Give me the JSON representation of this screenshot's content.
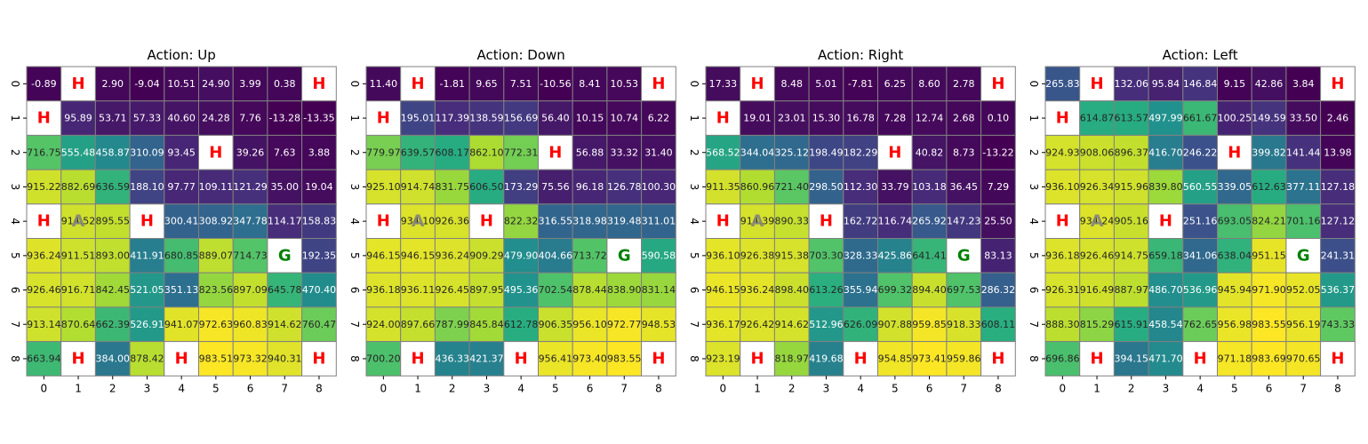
{
  "colors": {
    "hole_text": "#ff0000",
    "goal_text": "#008000",
    "agent_text": "#808080",
    "special_bg": "#ffffff",
    "grid_line": "#808080",
    "colormap": "viridis"
  },
  "chart_data": [
    {
      "type": "heatmap",
      "title": "Action: Up",
      "x_ticks": [
        "0",
        "1",
        "2",
        "3",
        "4",
        "5",
        "6",
        "7",
        "8"
      ],
      "y_ticks": [
        "0",
        "1",
        "2",
        "3",
        "4",
        "5",
        "6",
        "7",
        "8"
      ],
      "labels": [
        [
          "-0.89",
          "H",
          "2.90",
          "-9.04",
          "10.51",
          "24.90",
          "3.99",
          "0.38",
          "H"
        ],
        [
          "H",
          "95.89",
          "53.71",
          "57.33",
          "40.60",
          "24.28",
          "7.76",
          "-13.28",
          "-13.35"
        ],
        [
          "716.75",
          "555.48",
          "458.87",
          "310.09",
          "93.45",
          "H",
          "39.26",
          "7.63",
          "3.88"
        ],
        [
          "915.22",
          "882.69",
          "636.59",
          "188.10",
          "97.77",
          "109.11",
          "121.29",
          "35.00",
          "19.04"
        ],
        [
          "H",
          "914.52",
          "895.55",
          "H",
          "300.41",
          "308.92",
          "347.78",
          "114.17",
          "158.83"
        ],
        [
          "936.24",
          "911.51",
          "893.00",
          "411.91",
          "680.85",
          "889.07",
          "714.73",
          "G",
          "192.35"
        ],
        [
          "926.46",
          "916.71",
          "842.45",
          "521.05",
          "351.13",
          "823.56",
          "897.09",
          "645.78",
          "470.40"
        ],
        [
          "913.14",
          "870.64",
          "662.39",
          "526.91",
          "941.07",
          "972.63",
          "960.83",
          "914.62",
          "760.47"
        ],
        [
          "663.94",
          "H",
          "384.00",
          "878.42",
          "H",
          "983.51",
          "973.32",
          "940.31",
          "H"
        ]
      ]
    },
    {
      "type": "heatmap",
      "title": "Action: Down",
      "x_ticks": [
        "0",
        "1",
        "2",
        "3",
        "4",
        "5",
        "6",
        "7",
        "8"
      ],
      "y_ticks": [
        "0",
        "1",
        "2",
        "3",
        "4",
        "5",
        "6",
        "7",
        "8"
      ],
      "labels": [
        [
          "11.40",
          "H",
          "-1.81",
          "9.65",
          "7.51",
          "-10.56",
          "8.41",
          "10.53",
          "H"
        ],
        [
          "H",
          "195.01",
          "117.39",
          "138.59",
          "156.69",
          "56.40",
          "10.15",
          "10.74",
          "6.22"
        ],
        [
          "779.97",
          "639.57",
          "608.17",
          "862.10",
          "772.31",
          "H",
          "56.88",
          "33.32",
          "31.40"
        ],
        [
          "925.10",
          "914.74",
          "831.75",
          "606.50",
          "173.29",
          "75.56",
          "96.18",
          "126.78",
          "100.30"
        ],
        [
          "H",
          "934.10",
          "926.36",
          "H",
          "822.32",
          "316.55",
          "318.98",
          "319.48",
          "311.01"
        ],
        [
          "946.15",
          "946.15",
          "936.24",
          "909.29",
          "479.90",
          "404.66",
          "713.72",
          "G",
          "590.58"
        ],
        [
          "936.18",
          "936.11",
          "926.45",
          "897.95",
          "495.36",
          "702.54",
          "878.44",
          "838.90",
          "831.14"
        ],
        [
          "924.00",
          "897.66",
          "787.99",
          "845.84",
          "612.78",
          "906.35",
          "956.10",
          "972.77",
          "948.53"
        ],
        [
          "700.20",
          "H",
          "436.33",
          "421.37",
          "H",
          "956.41",
          "973.40",
          "983.55",
          "H"
        ]
      ]
    },
    {
      "type": "heatmap",
      "title": "Action: Right",
      "x_ticks": [
        "0",
        "1",
        "2",
        "3",
        "4",
        "5",
        "6",
        "7",
        "8"
      ],
      "y_ticks": [
        "0",
        "1",
        "2",
        "3",
        "4",
        "5",
        "6",
        "7",
        "8"
      ],
      "labels": [
        [
          "17.33",
          "H",
          "8.48",
          "5.01",
          "-7.81",
          "6.25",
          "8.60",
          "2.78",
          "H"
        ],
        [
          "H",
          "19.01",
          "23.01",
          "15.30",
          "16.78",
          "7.28",
          "12.74",
          "2.68",
          "0.10"
        ],
        [
          "568.52",
          "344.04",
          "325.12",
          "198.49",
          "182.29",
          "H",
          "40.82",
          "8.73",
          "-13.22"
        ],
        [
          "911.35",
          "860.96",
          "721.40",
          "298.50",
          "112.30",
          "33.79",
          "103.18",
          "36.45",
          "7.29"
        ],
        [
          "H",
          "914.39",
          "890.33",
          "H",
          "162.72",
          "116.74",
          "265.92",
          "147.23",
          "25.50"
        ],
        [
          "936.10",
          "926.38",
          "915.38",
          "703.30",
          "328.33",
          "425.86",
          "641.41",
          "G",
          "83.13"
        ],
        [
          "946.15",
          "936.24",
          "898.40",
          "613.26",
          "355.94",
          "699.32",
          "894.40",
          "697.53",
          "286.32"
        ],
        [
          "936.17",
          "926.42",
          "914.62",
          "512.96",
          "626.09",
          "907.88",
          "959.85",
          "918.33",
          "608.11"
        ],
        [
          "923.19",
          "H",
          "818.97",
          "419.68",
          "H",
          "954.85",
          "973.41",
          "959.86",
          "H"
        ]
      ]
    },
    {
      "type": "heatmap",
      "title": "Action: Left",
      "x_ticks": [
        "0",
        "1",
        "2",
        "3",
        "4",
        "5",
        "6",
        "7",
        "8"
      ],
      "y_ticks": [
        "0",
        "1",
        "2",
        "3",
        "4",
        "5",
        "6",
        "7",
        "8"
      ],
      "labels": [
        [
          "265.83",
          "H",
          "132.06",
          "95.84",
          "146.84",
          "9.15",
          "42.86",
          "3.84",
          "H"
        ],
        [
          "H",
          "614.87",
          "613.57",
          "497.99",
          "661.67",
          "100.25",
          "149.59",
          "33.50",
          "2.46"
        ],
        [
          "924.93",
          "908.06",
          "896.37",
          "416.70",
          "246.22",
          "H",
          "399.82",
          "141.44",
          "13.98"
        ],
        [
          "936.10",
          "926.34",
          "915.96",
          "839.80",
          "560.55",
          "339.05",
          "612.63",
          "377.11",
          "127.18"
        ],
        [
          "H",
          "934.24",
          "905.16",
          "H",
          "251.16",
          "693.05",
          "824.21",
          "701.16",
          "127.12"
        ],
        [
          "936.18",
          "926.46",
          "914.75",
          "659.18",
          "341.06",
          "638.04",
          "951.15",
          "G",
          "241.31"
        ],
        [
          "926.31",
          "916.49",
          "887.97",
          "486.70",
          "536.96",
          "945.94",
          "971.90",
          "952.05",
          "536.37"
        ],
        [
          "888.30",
          "815.29",
          "615.91",
          "458.54",
          "762.65",
          "956.98",
          "983.55",
          "956.19",
          "743.33"
        ],
        [
          "696.86",
          "H",
          "394.15",
          "471.70",
          "H",
          "971.18",
          "983.69",
          "970.65",
          "H"
        ]
      ]
    }
  ],
  "agent_marker": "A",
  "agent_cell": [
    4,
    1
  ]
}
